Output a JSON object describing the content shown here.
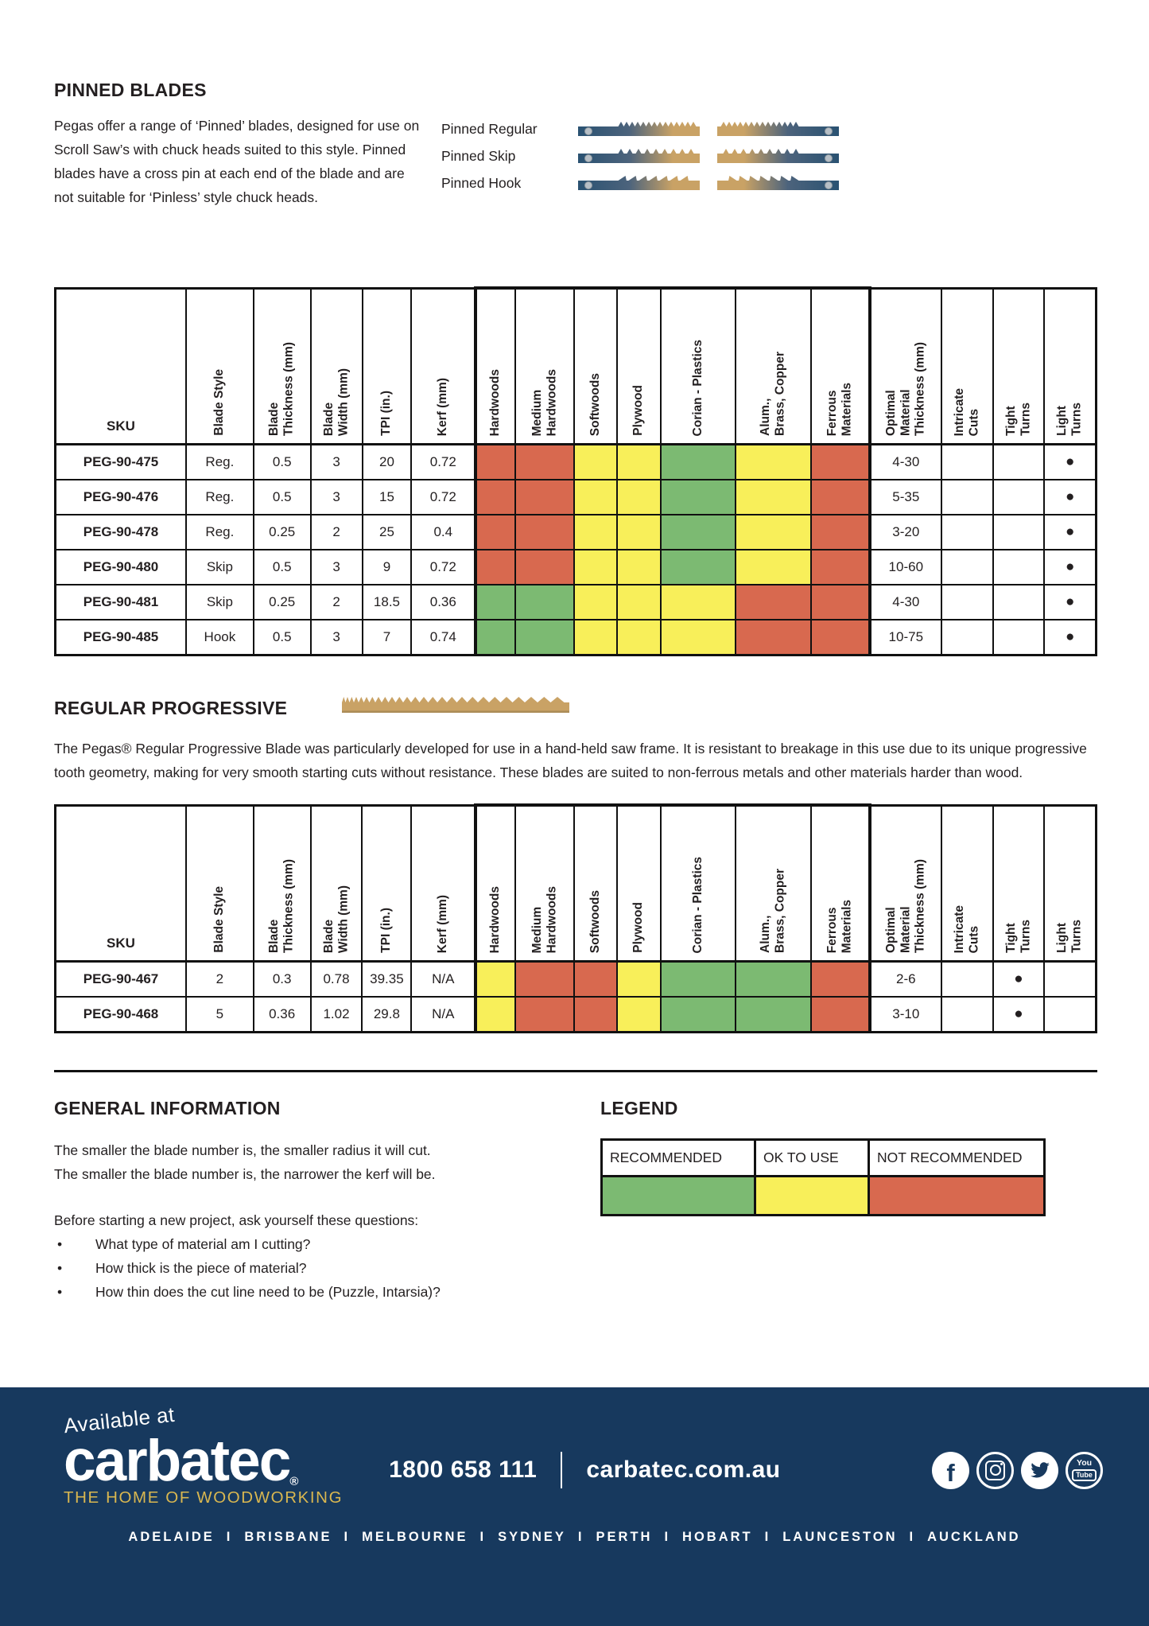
{
  "colors": {
    "rating": {
      "recommended": "#7cba72",
      "ok": "#f8ef5a",
      "not": "#d8694f"
    },
    "footer_bg": "#17395e",
    "gold": "#d9b750",
    "blade_navy": "#2a5272",
    "blade_tan": "#c9a265"
  },
  "pinned": {
    "title": "PINNED BLADES",
    "intro": "Pegas offer a range of ‘Pinned’ blades, designed for use on Scroll Saw’s with chuck heads suited to this style. Pinned blades have a cross pin at each end of the blade and are not suitable for ‘Pinless’ style chuck heads.",
    "blades": [
      {
        "label": "Pinned Regular",
        "type": "regular"
      },
      {
        "label": "Pinned Skip",
        "type": "skip"
      },
      {
        "label": "Pinned Hook",
        "type": "hook"
      }
    ]
  },
  "table_columns": [
    {
      "key": "sku",
      "label": "SKU"
    },
    {
      "key": "style",
      "label": "Blade Style"
    },
    {
      "key": "thickness",
      "label": "Blade\nThickness (mm)"
    },
    {
      "key": "width",
      "label": "Blade\nWidth (mm)"
    },
    {
      "key": "tpi",
      "label": "TPI (in.)"
    },
    {
      "key": "kerf",
      "label": "Kerf (mm)"
    },
    {
      "key": "hardwoods",
      "label": "Hardwoods",
      "type": "rating"
    },
    {
      "key": "medium_hardwoods",
      "label": "Medium\nHardwoods",
      "type": "rating"
    },
    {
      "key": "softwoods",
      "label": "Softwoods",
      "type": "rating"
    },
    {
      "key": "plywood",
      "label": "Plywood",
      "type": "rating"
    },
    {
      "key": "corian",
      "label": "Corian  - Plastics",
      "type": "rating"
    },
    {
      "key": "alum",
      "label": "Alum.,\nBrass, Copper",
      "type": "rating"
    },
    {
      "key": "ferrous",
      "label": "Ferrous\nMaterials",
      "type": "rating"
    },
    {
      "key": "optimal",
      "label": "Optimal\nMaterial\nThickness (mm)"
    },
    {
      "key": "intricate",
      "label": "Intricate\nCuts"
    },
    {
      "key": "tight",
      "label": "Tight\nTurns"
    },
    {
      "key": "light",
      "label": "Light\nTurns"
    }
  ],
  "pinned_table": {
    "rows": [
      {
        "sku": "PEG-90-475",
        "style": "Reg.",
        "thickness": "0.5",
        "width": "3",
        "tpi": "20",
        "kerf": "0.72",
        "ratings": {
          "hardwoods": "not",
          "medium_hardwoods": "not",
          "softwoods": "ok",
          "plywood": "ok",
          "corian": "recommended",
          "alum": "ok",
          "ferrous": "not"
        },
        "optimal": "4-30",
        "intricate": "",
        "tight": "",
        "light": "●"
      },
      {
        "sku": "PEG-90-476",
        "style": "Reg.",
        "thickness": "0.5",
        "width": "3",
        "tpi": "15",
        "kerf": "0.72",
        "ratings": {
          "hardwoods": "not",
          "medium_hardwoods": "not",
          "softwoods": "ok",
          "plywood": "ok",
          "corian": "recommended",
          "alum": "ok",
          "ferrous": "not"
        },
        "optimal": "5-35",
        "intricate": "",
        "tight": "",
        "light": "●"
      },
      {
        "sku": "PEG-90-478",
        "style": "Reg.",
        "thickness": "0.25",
        "width": "2",
        "tpi": "25",
        "kerf": "0.4",
        "ratings": {
          "hardwoods": "not",
          "medium_hardwoods": "not",
          "softwoods": "ok",
          "plywood": "ok",
          "corian": "recommended",
          "alum": "ok",
          "ferrous": "not"
        },
        "optimal": "3-20",
        "intricate": "",
        "tight": "",
        "light": "●"
      },
      {
        "sku": "PEG-90-480",
        "style": "Skip",
        "thickness": "0.5",
        "width": "3",
        "tpi": "9",
        "kerf": "0.72",
        "ratings": {
          "hardwoods": "not",
          "medium_hardwoods": "not",
          "softwoods": "ok",
          "plywood": "ok",
          "corian": "recommended",
          "alum": "ok",
          "ferrous": "not"
        },
        "optimal": "10-60",
        "intricate": "",
        "tight": "",
        "light": "●"
      },
      {
        "sku": "PEG-90-481",
        "style": "Skip",
        "thickness": "0.25",
        "width": "2",
        "tpi": "18.5",
        "kerf": "0.36",
        "ratings": {
          "hardwoods": "recommended",
          "medium_hardwoods": "recommended",
          "softwoods": "ok",
          "plywood": "ok",
          "corian": "ok",
          "alum": "not",
          "ferrous": "not"
        },
        "optimal": "4-30",
        "intricate": "",
        "tight": "",
        "light": "●"
      },
      {
        "sku": "PEG-90-485",
        "style": "Hook",
        "thickness": "0.5",
        "width": "3",
        "tpi": "7",
        "kerf": "0.74",
        "ratings": {
          "hardwoods": "recommended",
          "medium_hardwoods": "recommended",
          "softwoods": "ok",
          "plywood": "ok",
          "corian": "ok",
          "alum": "not",
          "ferrous": "not"
        },
        "optimal": "10-75",
        "intricate": "",
        "tight": "",
        "light": "●"
      }
    ]
  },
  "progressive": {
    "title": "REGULAR PROGRESSIVE",
    "intro": "The Pegas® Regular Progressive Blade was particularly developed for use in a hand-held saw frame. It is resistant to breakage in this use due to its unique progressive tooth geometry, making for very smooth starting cuts without resistance. These blades are suited to non-ferrous metals and other materials harder than wood."
  },
  "progressive_table": {
    "rows": [
      {
        "sku": "PEG-90-467",
        "style": "2",
        "thickness": "0.3",
        "width": "0.78",
        "tpi": "39.35",
        "kerf": "N/A",
        "ratings": {
          "hardwoods": "ok",
          "medium_hardwoods": "not",
          "softwoods": "not",
          "plywood": "ok",
          "corian": "recommended",
          "alum": "recommended",
          "ferrous": "not"
        },
        "optimal": "2-6",
        "intricate": "",
        "tight": "●",
        "light": ""
      },
      {
        "sku": "PEG-90-468",
        "style": "5",
        "thickness": "0.36",
        "width": "1.02",
        "tpi": "29.8",
        "kerf": "N/A",
        "ratings": {
          "hardwoods": "ok",
          "medium_hardwoods": "not",
          "softwoods": "not",
          "plywood": "ok",
          "corian": "recommended",
          "alum": "recommended",
          "ferrous": "not"
        },
        "optimal": "3-10",
        "intricate": "",
        "tight": "●",
        "light": ""
      }
    ]
  },
  "general": {
    "title": "GENERAL INFORMATION",
    "line1": "The smaller the blade number is, the smaller radius it will cut.",
    "line2": "The smaller the blade number is, the narrower the kerf will be.",
    "questions_intro": "Before starting a new project, ask yourself these questions:",
    "bullet": "•",
    "questions": [
      "What type of material am I cutting?",
      "How thick is the piece of material?",
      "How thin does the cut line need to be (Puzzle, Intarsia)?"
    ]
  },
  "legend": {
    "title": "LEGEND",
    "entries": [
      {
        "label": "RECOMMENDED",
        "rating": "recommended"
      },
      {
        "label": "OK TO USE",
        "rating": "ok"
      },
      {
        "label": "NOT RECOMMENDED",
        "rating": "not"
      }
    ]
  },
  "footer": {
    "available_at": "Available at",
    "brand": "carbatec",
    "reg_mark": "®",
    "tagline": "THE HOME OF WOODWORKING",
    "phone": "1800 658 111",
    "website": "carbatec.com.au",
    "social_icons": [
      "facebook",
      "instagram",
      "twitter",
      "youtube"
    ],
    "youtube_icon_text_top": "You",
    "youtube_icon_text_bottom": "Tube",
    "cities": [
      "ADELAIDE",
      "BRISBANE",
      "MELBOURNE",
      "SYDNEY",
      "PERTH",
      "HOBART",
      "LAUNCESTON",
      "AUCKLAND"
    ],
    "cities_separator": "I"
  }
}
